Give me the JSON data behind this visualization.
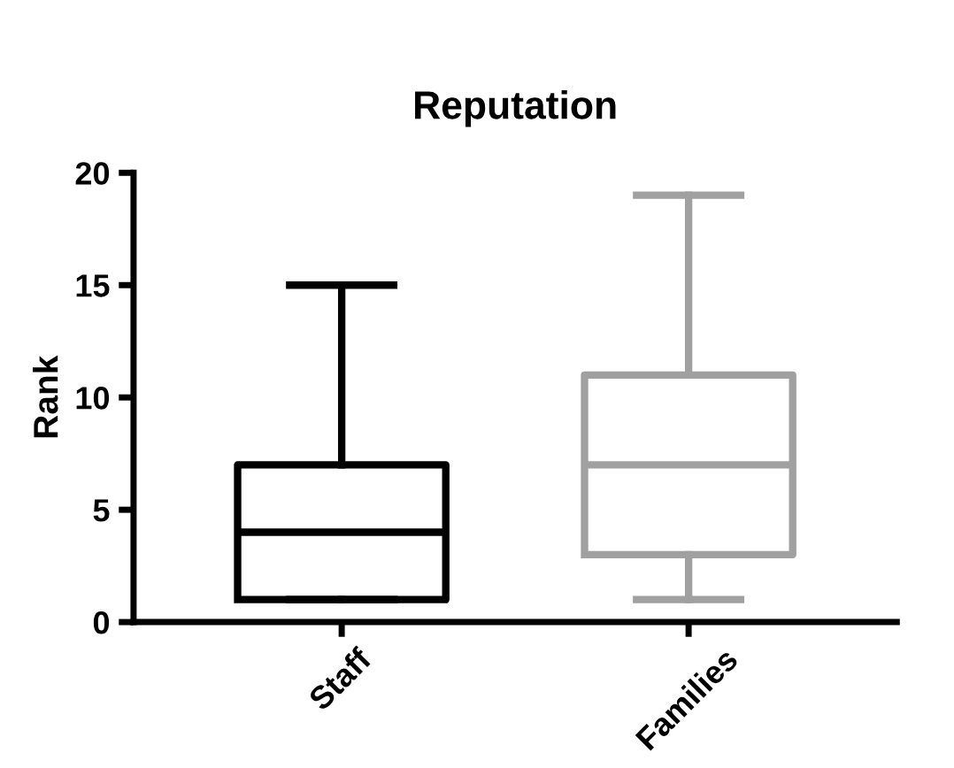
{
  "chart_data": {
    "type": "box",
    "title": "Reputation",
    "ylabel": "Rank",
    "categories": [
      "Staff",
      "Families"
    ],
    "boxes": [
      {
        "low": 1,
        "q1": 1,
        "median": 4,
        "q3": 7,
        "high": 15
      },
      {
        "low": 1,
        "q1": 3,
        "median": 7,
        "q3": 11,
        "high": 19
      }
    ],
    "colors": [
      "#000000",
      "#a0a0a0"
    ],
    "ylim": [
      0,
      20
    ],
    "yticks": [
      0,
      5,
      10,
      15,
      20
    ],
    "grid": false
  }
}
